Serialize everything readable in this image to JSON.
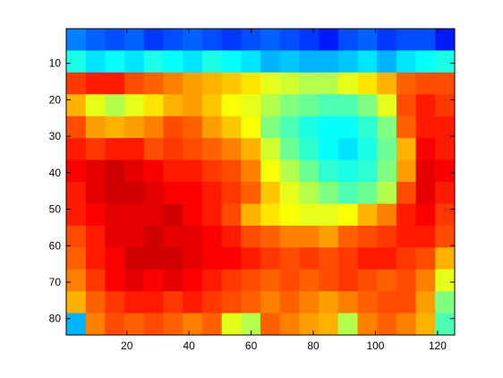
{
  "chart_data": {
    "type": "heatmap",
    "colormap": "jet",
    "xlim": [
      0.5,
      125.5
    ],
    "ylim": [
      84.5,
      0.5
    ],
    "xticks": [
      20,
      40,
      60,
      80,
      100,
      120
    ],
    "yticks": [
      10,
      20,
      30,
      40,
      50,
      60,
      70,
      80
    ],
    "values": [
      [
        0.25,
        0.22,
        0.2,
        0.22,
        0.18,
        0.2,
        0.22,
        0.2,
        0.18,
        0.2,
        0.22,
        0.2,
        0.18,
        0.15,
        0.2,
        0.22,
        0.18,
        0.2,
        0.2,
        0.15
      ],
      [
        0.4,
        0.35,
        0.38,
        0.35,
        0.4,
        0.38,
        0.35,
        0.4,
        0.38,
        0.35,
        0.3,
        0.32,
        0.3,
        0.3,
        0.32,
        0.35,
        0.3,
        0.35,
        0.38,
        0.4
      ],
      [
        0.82,
        0.85,
        0.85,
        0.8,
        0.78,
        0.75,
        0.72,
        0.7,
        0.68,
        0.65,
        0.6,
        0.58,
        0.55,
        0.55,
        0.6,
        0.65,
        0.7,
        0.78,
        0.8,
        0.8
      ],
      [
        0.7,
        0.6,
        0.55,
        0.6,
        0.65,
        0.7,
        0.72,
        0.68,
        0.62,
        0.6,
        0.55,
        0.5,
        0.48,
        0.45,
        0.45,
        0.5,
        0.6,
        0.8,
        0.85,
        0.82
      ],
      [
        0.8,
        0.72,
        0.7,
        0.72,
        0.75,
        0.8,
        0.78,
        0.72,
        0.68,
        0.62,
        0.5,
        0.45,
        0.4,
        0.38,
        0.38,
        0.42,
        0.5,
        0.78,
        0.85,
        0.85
      ],
      [
        0.85,
        0.82,
        0.85,
        0.85,
        0.8,
        0.82,
        0.8,
        0.78,
        0.75,
        0.7,
        0.58,
        0.48,
        0.42,
        0.38,
        0.35,
        0.4,
        0.48,
        0.7,
        0.88,
        0.85
      ],
      [
        0.88,
        0.9,
        0.92,
        0.9,
        0.88,
        0.85,
        0.85,
        0.82,
        0.8,
        0.75,
        0.62,
        0.55,
        0.48,
        0.42,
        0.4,
        0.42,
        0.5,
        0.72,
        0.9,
        0.88
      ],
      [
        0.85,
        0.9,
        0.92,
        0.92,
        0.9,
        0.88,
        0.88,
        0.85,
        0.82,
        0.78,
        0.68,
        0.6,
        0.55,
        0.5,
        0.45,
        0.48,
        0.55,
        0.8,
        0.9,
        0.85
      ],
      [
        0.85,
        0.88,
        0.9,
        0.9,
        0.9,
        0.92,
        0.88,
        0.85,
        0.8,
        0.7,
        0.65,
        0.62,
        0.6,
        0.6,
        0.62,
        0.7,
        0.75,
        0.85,
        0.88,
        0.82
      ],
      [
        0.8,
        0.85,
        0.9,
        0.9,
        0.92,
        0.9,
        0.9,
        0.88,
        0.85,
        0.8,
        0.78,
        0.75,
        0.75,
        0.72,
        0.78,
        0.8,
        0.82,
        0.85,
        0.85,
        0.8
      ],
      [
        0.78,
        0.85,
        0.88,
        0.92,
        0.92,
        0.92,
        0.9,
        0.88,
        0.88,
        0.85,
        0.82,
        0.8,
        0.82,
        0.8,
        0.82,
        0.85,
        0.85,
        0.82,
        0.8,
        0.7
      ],
      [
        0.75,
        0.82,
        0.88,
        0.9,
        0.88,
        0.9,
        0.88,
        0.85,
        0.82,
        0.8,
        0.78,
        0.8,
        0.78,
        0.8,
        0.82,
        0.8,
        0.78,
        0.8,
        0.75,
        0.6
      ],
      [
        0.7,
        0.78,
        0.82,
        0.85,
        0.85,
        0.82,
        0.85,
        0.82,
        0.8,
        0.78,
        0.75,
        0.78,
        0.75,
        0.72,
        0.75,
        0.78,
        0.8,
        0.8,
        0.72,
        0.5
      ],
      [
        0.3,
        0.75,
        0.8,
        0.78,
        0.8,
        0.78,
        0.75,
        0.78,
        0.6,
        0.55,
        0.78,
        0.75,
        0.72,
        0.7,
        0.55,
        0.75,
        0.78,
        0.75,
        0.7,
        0.45
      ]
    ]
  }
}
